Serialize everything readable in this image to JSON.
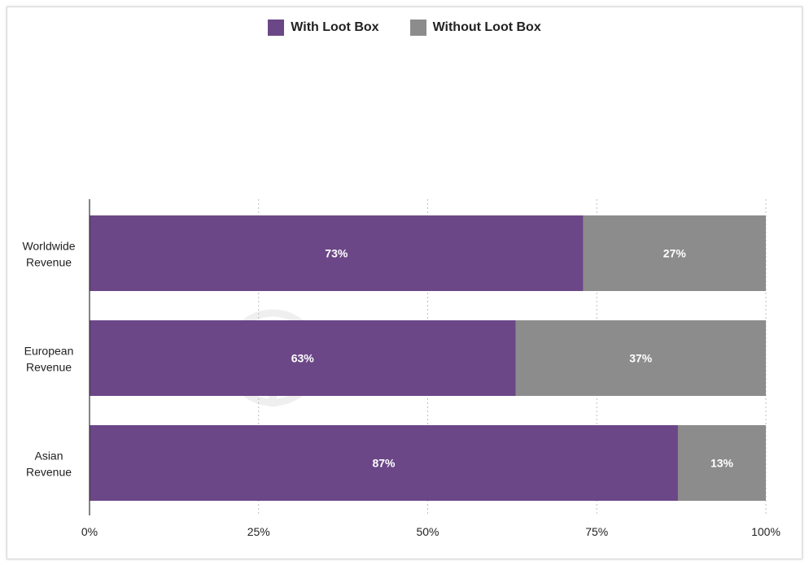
{
  "chart_data": {
    "type": "bar",
    "orientation": "horizontal",
    "stacked": true,
    "categories": [
      [
        "Worldwide",
        "Revenue"
      ],
      [
        "European",
        "Revenue"
      ],
      [
        "Asian",
        "Revenue"
      ]
    ],
    "series": [
      {
        "name": "With Loot Box",
        "color": "#6b4787",
        "values": [
          73,
          63,
          87
        ],
        "labels": [
          "73%",
          "63%",
          "87%"
        ]
      },
      {
        "name": "Without Loot Box",
        "color": "#8c8c8c",
        "values": [
          27,
          37,
          13
        ],
        "labels": [
          "27%",
          "37%",
          "13%"
        ]
      }
    ],
    "xlim": [
      0,
      100
    ],
    "xticks": [
      0,
      25,
      50,
      75,
      100
    ],
    "xtick_labels": [
      "0%",
      "25%",
      "50%",
      "75%",
      "100%"
    ],
    "grid": "vertical dotted",
    "legend_position": "top-center"
  },
  "watermark": "SensorTower"
}
